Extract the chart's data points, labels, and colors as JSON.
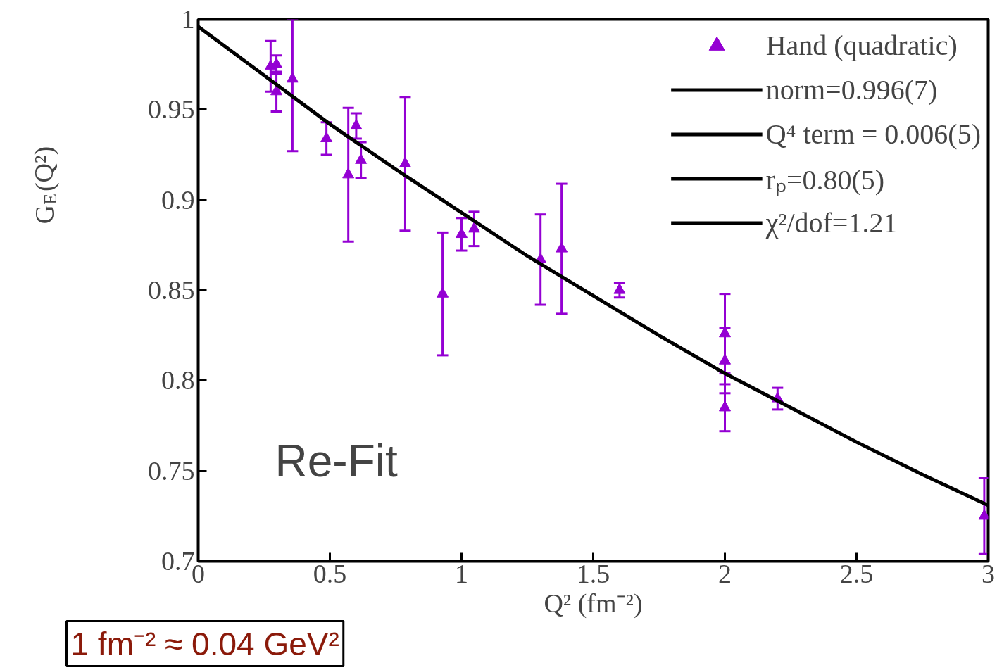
{
  "chart_data": {
    "type": "scatter",
    "xlabel": "Q² (fm⁻²)",
    "ylabel": "G$_{E}$(Q²)",
    "xlim": [
      0,
      3
    ],
    "ylim": [
      0.7,
      1
    ],
    "xticks": [
      0,
      0.5,
      1,
      1.5,
      2,
      2.5,
      3
    ],
    "yticks": [
      0.7,
      0.75,
      0.8,
      0.85,
      0.9,
      0.95,
      1
    ],
    "grid": false,
    "legend": "top right",
    "series": [
      {
        "name": "Hand (quadratic)",
        "marker": "triangle",
        "color": "#9400d3",
        "x": [
          0.275,
          0.297,
          0.297,
          0.358,
          0.487,
          0.57,
          0.6,
          0.618,
          0.786,
          0.928,
          1.0,
          1.048,
          1.3,
          1.38,
          1.6,
          2.0,
          2.0,
          2.0,
          2.2,
          2.985
        ],
        "values": [
          0.974,
          0.975,
          0.96,
          0.967,
          0.934,
          0.914,
          0.941,
          0.922,
          0.92,
          0.848,
          0.881,
          0.884,
          0.867,
          0.873,
          0.85,
          0.826,
          0.811,
          0.785,
          0.79,
          0.725
        ],
        "errors": [
          0.014,
          0.005,
          0.011,
          [
            0.927,
            1.0
          ],
          0.009,
          0.037,
          0.007,
          0.01,
          0.037,
          0.034,
          0.009,
          0.0095,
          0.025,
          0.036,
          0.004,
          0.022,
          0.018,
          0.013,
          0.006,
          0.021
        ]
      },
      {
        "name": "norm=0.996(7)",
        "type": "line",
        "color": "#000000",
        "line_style": "solid",
        "x": [
          0,
          0.25,
          0.5,
          0.75,
          1,
          1.25,
          1.5,
          1.75,
          2,
          2.25,
          2.5,
          2.75,
          3
        ],
        "values": [
          0.996,
          0.969,
          0.942,
          0.917,
          0.893,
          0.869,
          0.847,
          0.825,
          0.804,
          0.785,
          0.766,
          0.748,
          0.731
        ]
      }
    ],
    "annotations": [
      "Re-Fit",
      "1 fm⁻² ≈ 0.04 GeV²",
      "Q⁴ term = 0.006(5)",
      "rₚ=0.80(5)",
      "χ²/dof=1.21"
    ]
  }
}
